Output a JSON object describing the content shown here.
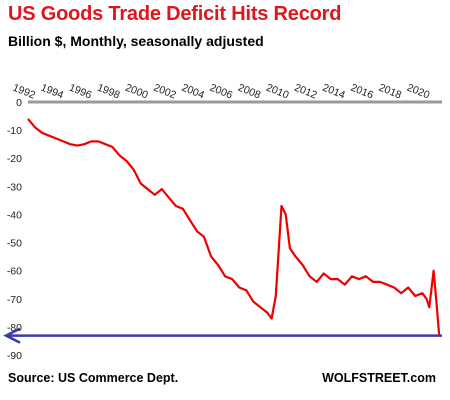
{
  "chart_data": {
    "type": "line",
    "title": "US Goods Trade Deficit Hits Record",
    "subtitle": "Billion $, Monthly, seasonally adjusted",
    "source": "Source: US Commerce Dept.",
    "credit": "WOLFSTREET.com",
    "xlabel": "",
    "ylabel": "",
    "x_tick_labels": [
      "1992",
      "1994",
      "1996",
      "1998",
      "2000",
      "2002",
      "2004",
      "2006",
      "2008",
      "2010",
      "2012",
      "2014",
      "2016",
      "2018",
      "2020"
    ],
    "y_tick_labels": [
      "0",
      "-10",
      "-20",
      "-30",
      "-40",
      "-50",
      "-60",
      "-70",
      "-80",
      "-90"
    ],
    "xlim": [
      1992,
      2021.4
    ],
    "ylim": [
      -90,
      0
    ],
    "grid": false,
    "line_color": "#ee0000",
    "reference_line": {
      "value": -83.1,
      "color": "#3c3ca8",
      "arrow": "left"
    },
    "series": [
      {
        "x": [
          1992.0,
          1992.5,
          1993.0,
          1993.5,
          1994.0,
          1994.5,
          1995.0,
          1995.5,
          1996.0,
          1996.5,
          1997.0,
          1997.5,
          1998.0,
          1998.5,
          1999.0,
          1999.5,
          2000.0,
          2000.5,
          2001.0,
          2001.5,
          2002.0,
          2002.5,
          2003.0,
          2003.5,
          2004.0,
          2004.5,
          2005.0,
          2005.5,
          2006.0,
          2006.5,
          2007.0,
          2007.5,
          2008.0,
          2008.5,
          2009.0,
          2009.3,
          2009.6,
          2010.0,
          2010.3,
          2010.6,
          2011.0,
          2011.5,
          2012.0,
          2012.5,
          2013.0,
          2013.5,
          2014.0,
          2014.5,
          2015.0,
          2015.5,
          2016.0,
          2016.5,
          2017.0,
          2017.5,
          2018.0,
          2018.5,
          2019.0,
          2019.5,
          2020.0,
          2020.3,
          2020.5,
          2020.8,
          2021.0,
          2021.2
        ],
        "values": [
          -6,
          -9,
          -11,
          -12,
          -13,
          -14,
          -15,
          -15.5,
          -15,
          -14,
          -14,
          -15,
          -16,
          -19,
          -21,
          -24,
          -29,
          -31,
          -33,
          -31,
          -34,
          -37,
          -38,
          -42,
          -46,
          -48,
          -55,
          -58,
          -62,
          -63,
          -66,
          -67,
          -71,
          -73,
          -75,
          -77,
          -69,
          -37,
          -40,
          -52,
          -55,
          -58,
          -62,
          -64,
          -61,
          -63,
          -63,
          -65,
          -62,
          -63,
          -62,
          -64,
          -64,
          -65,
          -66,
          -68,
          -66,
          -69,
          -68,
          -70,
          -73,
          -60,
          -71,
          -83.1
        ]
      }
    ]
  }
}
